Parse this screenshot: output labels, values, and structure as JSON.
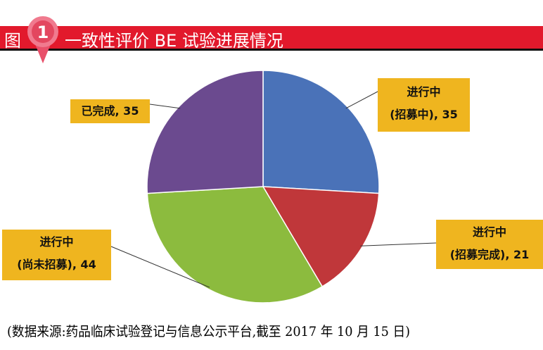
{
  "figure_label": "图",
  "figure_number": "1",
  "title": "一致性评价 BE 试验进展情况",
  "footer": "(数据来源:药品临床试验登记与信息公示平台,截至 2017 年 10 月 15 日)",
  "chart_data": {
    "type": "pie",
    "start": "12 o'clock, clockwise",
    "slices": [
      {
        "label_line1": "进行中",
        "label_line2": "(招募中), 35",
        "value": 35,
        "color": "#4a72b8"
      },
      {
        "label_line1": "进行中",
        "label_line2": "(招募完成), 21",
        "value": 21,
        "color": "#c0373a"
      },
      {
        "label_line1": "进行中",
        "label_line2": "(尚未招募), 44",
        "value": 44,
        "color": "#8cbb3e"
      },
      {
        "label_line1": "已完成, 35",
        "label_line2": "",
        "value": 35,
        "color": "#6b4a8f"
      }
    ],
    "label_bg": "#efb51f"
  }
}
